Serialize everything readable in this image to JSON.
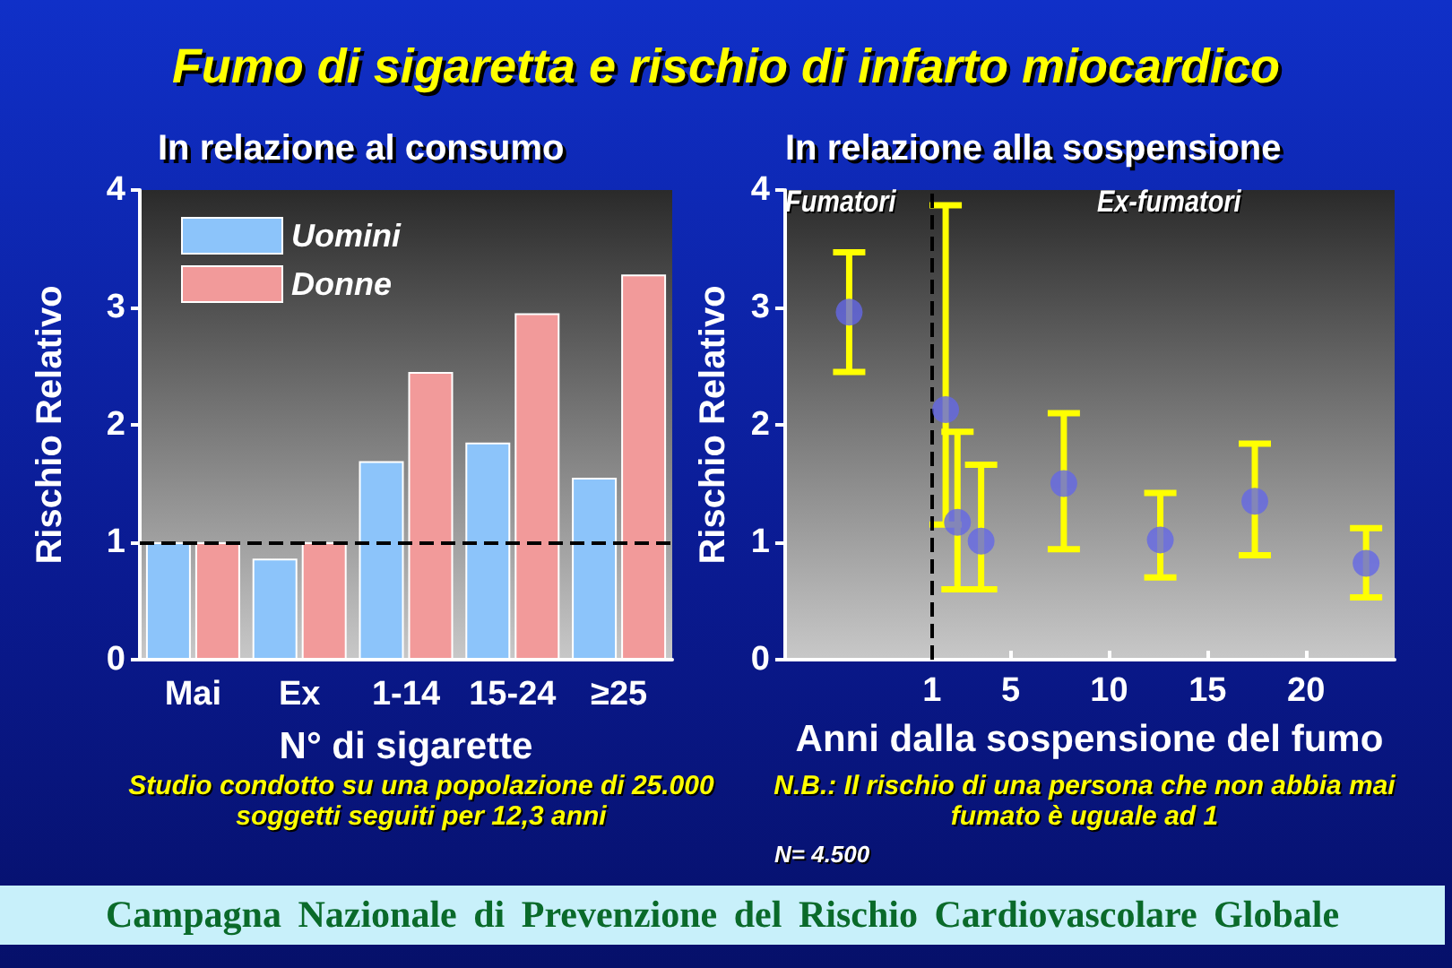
{
  "chart_data": [
    {
      "type": "bar",
      "title": "Fumo di sigaretta e rischio di infarto miocardico",
      "subtitle": "In relazione al consumo",
      "xlabel": "N° di sigarette",
      "ylabel": "Rischio Relativo",
      "categories": [
        "Mai",
        "Ex",
        "1-14",
        "15-24",
        "≥25"
      ],
      "series": [
        {
          "name": "Uomini",
          "color": "#8cc4fa",
          "values": [
            1.0,
            0.86,
            1.69,
            1.85,
            1.55
          ]
        },
        {
          "name": "Donne",
          "color": "#f29a9a",
          "values": [
            1.0,
            1.0,
            2.45,
            2.95,
            3.28
          ]
        }
      ],
      "ylim": [
        0,
        4
      ],
      "yticks": [
        0,
        1,
        2,
        3,
        4
      ],
      "grid": false,
      "legend": "top left",
      "ref_lines": [
        {
          "axis": "y",
          "value": 1,
          "color": "#000000",
          "line_style": "dashed"
        }
      ],
      "annotations": [
        "Studio condotto su una popolazione di 25.000 soggetti seguiti per 12,3 anni"
      ]
    },
    {
      "type": "scatter",
      "title": "In relazione alla sospensione",
      "xlabel": "Anni dalla sospensione del fumo",
      "ylabel": "Rischio Relativo",
      "x": [
        -3.2,
        1.7,
        2.3,
        3.5,
        7.7,
        12.6,
        17.4,
        23.05
      ],
      "values": [
        2.96,
        2.13,
        1.17,
        1.01,
        1.5,
        1.02,
        1.35,
        0.82
      ],
      "errors": [
        [
          2.45,
          3.47
        ],
        [
          1.15,
          3.87
        ],
        [
          0.6,
          1.94
        ],
        [
          0.6,
          1.66
        ],
        [
          0.94,
          2.1
        ],
        [
          0.7,
          1.42
        ],
        [
          0.89,
          1.84
        ],
        [
          0.53,
          1.12
        ]
      ],
      "color": "#6468e6",
      "marker": "circle",
      "xlim": [
        -6.5,
        24.5
      ],
      "xticks": [
        1,
        5,
        10,
        15,
        20
      ],
      "ylim": [
        0,
        4
      ],
      "yticks": [
        0,
        1,
        2,
        3,
        4
      ],
      "grid": false,
      "ref_lines": [
        {
          "axis": "x",
          "value": 1,
          "color": "#000000",
          "line_style": "dashed"
        }
      ],
      "annotations": [
        "Fumatori",
        "Ex-fumatori",
        "N.B.: Il rischio di una persona che non abbia mai fumato è uguale ad 1",
        "N= 4.500",
        "Campagna Nazionale di Prevenzione del Rischio Cardiovascolare Globale"
      ]
    }
  ]
}
